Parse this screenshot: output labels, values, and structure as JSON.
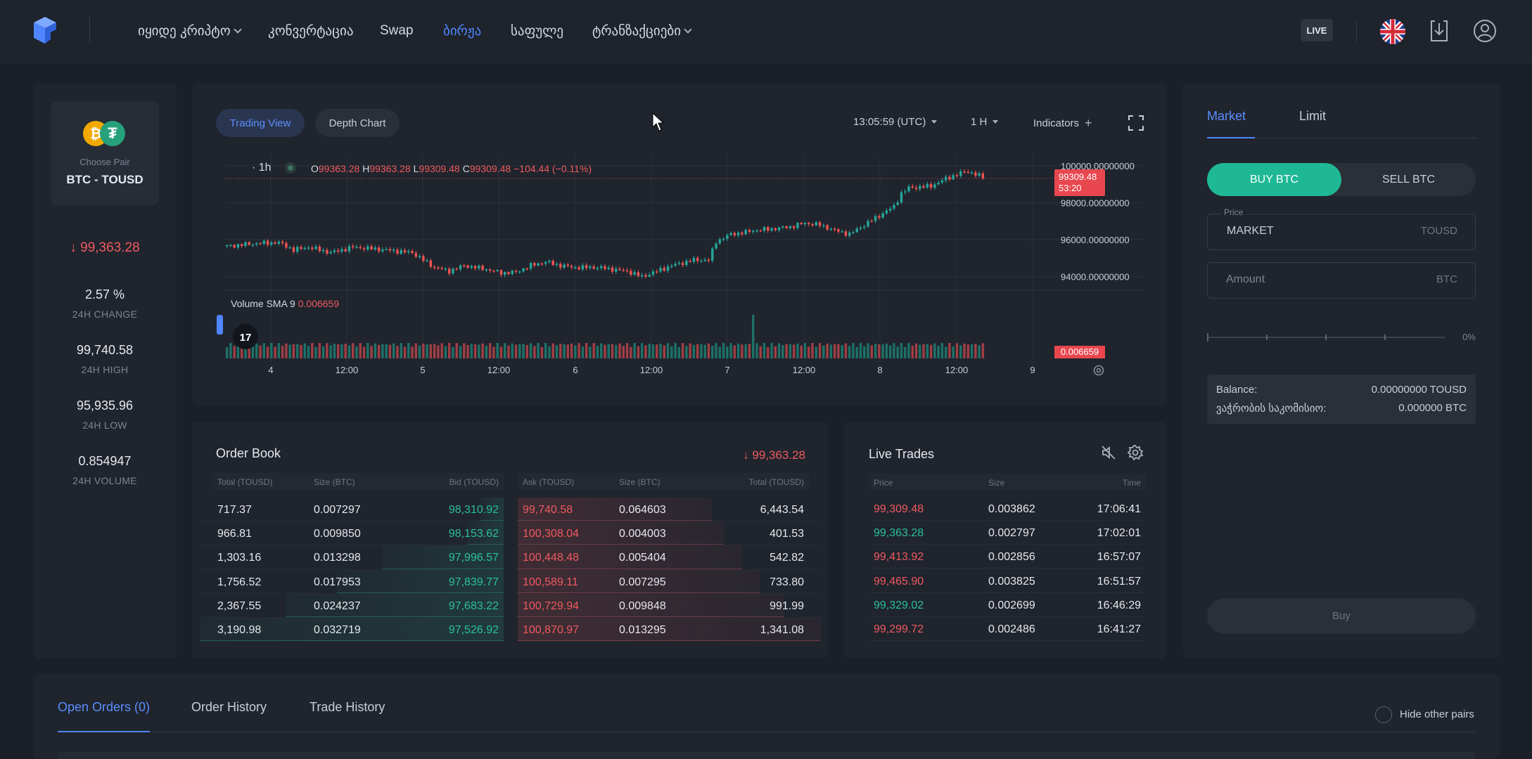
{
  "nav": {
    "items": [
      {
        "label": "იყიდე კრიპტო",
        "dropdown": true,
        "left": 0
      },
      {
        "label": "კონვერტაცია",
        "dropdown": false
      },
      {
        "label": "Swap",
        "dropdown": false
      },
      {
        "label": "ბირჟა",
        "dropdown": false,
        "active": true
      },
      {
        "label": "საფულე",
        "dropdown": false
      },
      {
        "label": "ტრანზაქციები",
        "dropdown": true
      }
    ],
    "live_label": "LIVE"
  },
  "pair": {
    "choose_label": "Choose Pair",
    "name": "BTC - TOUSD"
  },
  "stats": {
    "price": "99,363.28",
    "change": "2.57 %",
    "change_label": "24H CHANGE",
    "high": "99,740.58",
    "high_label": "24H HIGH",
    "low": "95,935.96",
    "low_label": "24H LOW",
    "volume": "0.854947",
    "volume_label": "24H VOLUME"
  },
  "chart_panel": {
    "tab_trading_view": "Trading View",
    "tab_depth_chart": "Depth Chart",
    "time": "13:05:59 (UTC)",
    "interval": "1 H",
    "indicators": "Indicators",
    "legend_interval": "· 1h",
    "ohlc": {
      "o_label": "O",
      "o": "99363.28",
      "h_label": "H",
      "h": "99363.28",
      "l_label": "L",
      "l": "99309.48",
      "c_label": "C",
      "c": "99309.48",
      "chg": "−104.44 (−0.11%)"
    },
    "volume_label": "Volume SMA 9",
    "volume_value": "0.006659",
    "price_tag": "99309.48",
    "countdown": "53:20",
    "volume_tag": "0.006659"
  },
  "chart_data": {
    "type": "candlestick",
    "y_axis_labels": [
      "100000.00000000",
      "98000.00000000",
      "96000.00000000",
      "94000.00000000"
    ],
    "y_ticks": [
      100000,
      98000,
      96000,
      94000
    ],
    "ylim": [
      93000,
      100600
    ],
    "x_tick_labels": [
      "4",
      "12:00",
      "5",
      "12:00",
      "6",
      "12:00",
      "7",
      "12:00",
      "8",
      "12:00",
      "9"
    ],
    "close_anchors": [
      [
        0,
        95650
      ],
      [
        8,
        95800
      ],
      [
        14,
        95850
      ],
      [
        18,
        95450
      ],
      [
        22,
        95600
      ],
      [
        28,
        95300
      ],
      [
        34,
        95600
      ],
      [
        40,
        95500
      ],
      [
        50,
        95300
      ],
      [
        56,
        94500
      ],
      [
        60,
        94300
      ],
      [
        64,
        94600
      ],
      [
        70,
        94400
      ],
      [
        74,
        94200
      ],
      [
        78,
        94250
      ],
      [
        82,
        94600
      ],
      [
        86,
        94800
      ],
      [
        90,
        94600
      ],
      [
        94,
        94500
      ],
      [
        100,
        94500
      ],
      [
        108,
        94300
      ],
      [
        112,
        94000
      ],
      [
        116,
        94300
      ],
      [
        120,
        94600
      ],
      [
        126,
        94900
      ],
      [
        130,
        94900
      ],
      [
        132,
        95900
      ],
      [
        136,
        96300
      ],
      [
        140,
        96400
      ],
      [
        142,
        96500
      ],
      [
        148,
        96600
      ],
      [
        152,
        96700
      ],
      [
        156,
        96900
      ],
      [
        160,
        96800
      ],
      [
        164,
        96500
      ],
      [
        168,
        96300
      ],
      [
        172,
        96800
      ],
      [
        176,
        97300
      ],
      [
        180,
        97800
      ],
      [
        182,
        98500
      ],
      [
        184,
        98800
      ],
      [
        190,
        98900
      ],
      [
        194,
        99300
      ],
      [
        198,
        99600
      ],
      [
        200,
        99700
      ],
      [
        204,
        99363
      ]
    ],
    "current_price": 99309.48,
    "volume_series_note": "",
    "volume_spike_index": 142
  },
  "orderbook": {
    "title": "Order Book",
    "last_price": "99,363.28",
    "bid_headers": [
      "Total (TOUSD)",
      "Size (BTC)",
      "Bid (TOUSD)"
    ],
    "ask_headers": [
      "Ask (TOUSD)",
      "Size (BTC)",
      "Total (TOUSD)"
    ],
    "bids": [
      {
        "total": "717.37",
        "size": "0.007297",
        "price": "98,310.92",
        "depth": 0.08
      },
      {
        "total": "966.81",
        "size": "0.009850",
        "price": "98,153.62",
        "depth": 0.12
      },
      {
        "total": "1,303.16",
        "size": "0.013298",
        "price": "97,996.57",
        "depth": 0.4
      },
      {
        "total": "1,756.52",
        "size": "0.017953",
        "price": "97,839.77",
        "depth": 0.55
      },
      {
        "total": "2,367.55",
        "size": "0.024237",
        "price": "97,683.22",
        "depth": 0.72
      },
      {
        "total": "3,190.98",
        "size": "0.032719",
        "price": "97,526.92",
        "depth": 1.0
      }
    ],
    "asks": [
      {
        "price": "99,740.58",
        "size": "0.064603",
        "total": "6,443.54",
        "depth": 0.64
      },
      {
        "price": "100,308.04",
        "size": "0.004003",
        "total": "401.53",
        "depth": 0.68
      },
      {
        "price": "100,448.48",
        "size": "0.005404",
        "total": "542.82",
        "depth": 0.74
      },
      {
        "price": "100,589.11",
        "size": "0.007295",
        "total": "733.80",
        "depth": 0.8
      },
      {
        "price": "100,729.94",
        "size": "0.009848",
        "total": "991.99",
        "depth": 0.88
      },
      {
        "price": "100,870.97",
        "size": "0.013295",
        "total": "1,341.08",
        "depth": 1.0
      }
    ]
  },
  "trades": {
    "title": "Live Trades",
    "headers": [
      "Price",
      "Size",
      "Time"
    ],
    "rows": [
      {
        "price": "99,309.48",
        "size": "0.003862",
        "time": "17:06:41",
        "side": "sell"
      },
      {
        "price": "99,363.28",
        "size": "0.002797",
        "time": "17:02:01",
        "side": "buy"
      },
      {
        "price": "99,413.92",
        "size": "0.002856",
        "time": "16:57:07",
        "side": "sell"
      },
      {
        "price": "99,465.90",
        "size": "0.003825",
        "time": "16:51:57",
        "side": "sell"
      },
      {
        "price": "99,329.02",
        "size": "0.002699",
        "time": "16:46:29",
        "side": "buy"
      },
      {
        "price": "99,299.72",
        "size": "0.002486",
        "time": "16:41:27",
        "side": "sell"
      }
    ]
  },
  "form": {
    "tab_market": "Market",
    "tab_limit": "Limit",
    "buy_label": "BUY BTC",
    "sell_label": "SELL BTC",
    "price_label": "Price",
    "price_value": "MARKET",
    "price_unit": "TOUSD",
    "amount_placeholder": "Amount",
    "amount_unit": "BTC",
    "slider_percent": "0%",
    "slider_value": 0,
    "balance_label": "Balance:",
    "balance_value": "0.00000000 TOUSD",
    "fee_label": "ვაჭრობის საკომისიო:",
    "fee_value": "0.000000 BTC",
    "submit_label": "Buy"
  },
  "orders": {
    "tabs": [
      "Open Orders (0)",
      "Order History",
      "Trade History"
    ],
    "hide_label": "Hide other pairs"
  },
  "colors": {
    "accent": "#4f86ff",
    "buy": "#2bc19a",
    "sell": "#ef5a5f",
    "bg": "#1b2028",
    "panel": "#1f242d"
  }
}
